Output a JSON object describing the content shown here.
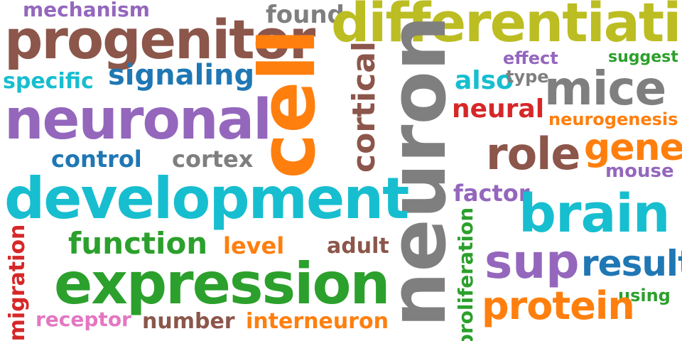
{
  "colors": {
    "purple": "#9467bd",
    "brown": "#8c564b",
    "blue": "#1f77b4",
    "cyan": "#17becf",
    "orange": "#ff7f0e",
    "green": "#2ca02c",
    "red": "#d62728",
    "pink": "#e377c2",
    "gray": "#7f7f7f",
    "olive": "#bcbd22"
  },
  "words": {
    "mechanism": "mechanism",
    "found": "found",
    "differentiation": "differentiation",
    "progenitor": "progenitor",
    "cell": "cell",
    "cortical": "cortical",
    "neuron": "neuron",
    "effect": "effect",
    "suggest": "suggest",
    "specific": "specific",
    "signaling": "signaling",
    "also": "also",
    "type": "type",
    "mice": "mice",
    "neuronal": "neuronal",
    "neural": "neural",
    "neurogenesis": "neurogenesis",
    "control": "control",
    "cortex": "cortex",
    "role": "role",
    "gene": "gene",
    "mouse": "mouse",
    "development": "development",
    "factor": "factor",
    "brain": "brain",
    "proliferation": "proliferation",
    "function": "function",
    "level": "level",
    "adult": "adult",
    "migration": "migration",
    "sup": "sup",
    "result": "result",
    "expression": "expression",
    "using": "using",
    "protein": "protein",
    "receptor": "receptor",
    "number": "number",
    "interneuron": "interneuron"
  }
}
